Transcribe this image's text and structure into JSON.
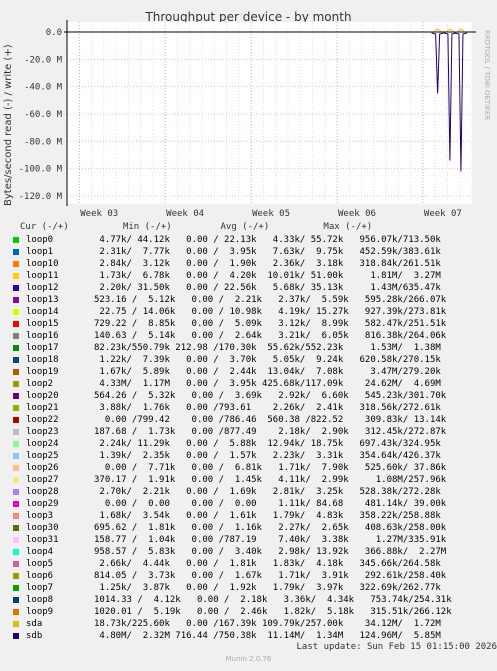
{
  "chart_data": {
    "type": "line",
    "title": "Throughput per device - by month",
    "ylabel": "Bytes/second read (-) / write (+)",
    "ylim": [
      -125000000,
      5000000
    ],
    "yticks": [
      {
        "v": 0,
        "label": "0.0"
      },
      {
        "v": -20000000,
        "label": "-20.0 M"
      },
      {
        "v": -40000000,
        "label": "-40.0 M"
      },
      {
        "v": -60000000,
        "label": "-60.0 M"
      },
      {
        "v": -80000000,
        "label": "-80.0 M"
      },
      {
        "v": -100000000,
        "label": "-100.0 M"
      },
      {
        "v": -120000000,
        "label": "-120.0 M"
      }
    ],
    "xlim": [
      0,
      33
    ],
    "xticks": [
      {
        "v": 1,
        "label": "Week 03"
      },
      {
        "v": 8,
        "label": "Week 04"
      },
      {
        "v": 15,
        "label": "Week 05"
      },
      {
        "v": 22,
        "label": "Week 06"
      },
      {
        "v": 29,
        "label": "Week 07"
      }
    ],
    "spikes": [
      {
        "x": 30.2,
        "y": -45000000
      },
      {
        "x": 31.2,
        "y": -94000000
      },
      {
        "x": 32.1,
        "y": -102000000
      }
    ],
    "grid": true,
    "legend_placement": "bottom"
  },
  "legend_header": "Cur (-/+)          Min (-/+)         Avg (-/+)          Max (-/+)",
  "series": [
    {
      "name": "loop0",
      "color": "#00cc00",
      "text": " 4.77k/ 44.12k   0.00 / 22.13k   4.33k/ 55.72k   956.07k/713.50k"
    },
    {
      "name": "loop1",
      "color": "#0066b3",
      "text": " 2.31k/  7.77k   0.00 /  3.95k   7.63k/  9.75k   452.59k/383.61k"
    },
    {
      "name": "loop10",
      "color": "#ff8000",
      "text": " 2.84k/  3.12k   0.00 /  1.90k   2.36k/  3.18k   318.84k/261.51k"
    },
    {
      "name": "loop11",
      "color": "#ffcc00",
      "text": " 1.73k/  6.78k   0.00 /  4.20k  10.01k/ 51.00k     1.81M/  3.27M"
    },
    {
      "name": "loop12",
      "color": "#330099",
      "text": " 2.20k/ 31.50k   0.00 / 22.56k   5.68k/ 35.13k     1.43M/635.47k"
    },
    {
      "name": "loop13",
      "color": "#990099",
      "text": "523.16 /  5.12k   0.00 /  2.21k   2.37k/  5.59k   595.28k/266.07k"
    },
    {
      "name": "loop14",
      "color": "#ccff00",
      "text": " 22.75 / 14.06k   0.00 / 10.98k   4.19k/ 15.27k   927.39k/273.81k"
    },
    {
      "name": "loop15",
      "color": "#ff0000",
      "text": "729.22 /  8.85k   0.00 /  5.09k   3.12k/  8.99k   582.47k/251.51k"
    },
    {
      "name": "loop16",
      "color": "#808080",
      "text": "140.63 /  5.14k   0.00 /  2.64k   3.21k/  6.05k   816.38k/264.06k"
    },
    {
      "name": "loop17",
      "color": "#008f00",
      "text": "82.23k/550.79k 212.98 /170.30k  55.62k/552.23k     1.53M/  1.38M"
    },
    {
      "name": "loop18",
      "color": "#00487d",
      "text": " 1.22k/  7.39k   0.00 /  3.70k   5.05k/  9.24k   620.58k/270.15k"
    },
    {
      "name": "loop19",
      "color": "#b35a00",
      "text": " 1.67k/  5.89k   0.00 /  2.44k  13.04k/  7.08k     3.47M/279.20k"
    },
    {
      "name": "loop2",
      "color": "#b38f00",
      "text": " 4.33M/  1.17M   0.00 /  3.95k 425.68k/117.09k    24.62M/  4.69M"
    },
    {
      "name": "loop20",
      "color": "#6b006b",
      "text": "564.26 /  5.32k   0.00 /  3.69k   2.92k/  6.60k   545.23k/301.70k"
    },
    {
      "name": "loop21",
      "color": "#8fb300",
      "text": " 3.88k/  1.76k   0.00 /793.61    2.26k/  2.41k   318.56k/272.61k"
    },
    {
      "name": "loop22",
      "color": "#b30000",
      "text": "  0.00 /799.42    0.00 /786.46  560.38 /822.52    309.83k/ 13.14k"
    },
    {
      "name": "loop23",
      "color": "#bebebe",
      "text": "187.68 /  1.73k   0.00 /877.49    2.18k/  2.90k   312.45k/272.87k"
    },
    {
      "name": "loop24",
      "color": "#80ff80",
      "text": " 2.24k/ 11.29k   0.00 /  5.88k  12.94k/ 18.75k   697.43k/324.95k"
    },
    {
      "name": "loop25",
      "color": "#80c9ff",
      "text": " 1.39k/  2.35k   0.00 /  1.57k   2.23k/  3.31k   354.64k/426.37k"
    },
    {
      "name": "loop26",
      "color": "#ffc080",
      "text": "  0.00 /  7.71k   0.00 /  6.81k   1.71k/  7.90k   525.60k/ 37.86k"
    },
    {
      "name": "loop27",
      "color": "#ffe680",
      "text": "370.17 /  1.91k   0.00 /  1.45k   4.11k/  2.99k     1.08M/257.96k"
    },
    {
      "name": "loop28",
      "color": "#aa80ff",
      "text": " 2.70k/  2.21k   0.00 /  1.69k   2.81k/  3.25k   528.38k/272.28k"
    },
    {
      "name": "loop29",
      "color": "#ee00cc",
      "text": "  0.00 /  0.00    0.00 /  0.00    1.11k/ 84.68    481.14k/ 39.00k"
    },
    {
      "name": "loop3",
      "color": "#ff8080",
      "text": " 1.68k/  3.54k   0.00 /  1.61k   1.79k/  4.83k   358.22k/258.88k"
    },
    {
      "name": "loop30",
      "color": "#666600",
      "text": "695.62 /  1.81k   0.00 /  1.16k   2.27k/  2.65k   408.63k/258.00k"
    },
    {
      "name": "loop31",
      "color": "#ffbfff",
      "text": "158.77 /  1.04k   0.00 /787.19    7.40k/  3.38k     1.27M/335.91k"
    },
    {
      "name": "loop4",
      "color": "#00ffcc",
      "text": "958.57 /  5.83k   0.00 /  3.40k   2.98k/ 13.92k   366.88k/  2.27M"
    },
    {
      "name": "loop5",
      "color": "#cc6699",
      "text": " 2.66k/  4.44k   0.00 /  1.81k   1.83k/  4.18k   345.66k/264.58k"
    },
    {
      "name": "loop6",
      "color": "#999900",
      "text": "814.05 /  3.73k   0.00 /  1.67k   1.71k/  3.91k   292.61k/258.40k"
    },
    {
      "name": "loop7",
      "color": "#00a300",
      "text": " 1.25k/  3.87k   0.00 /  1.92k   1.79k/  3.97k   322.69k/262.77k"
    },
    {
      "name": "loop8",
      "color": "#003d73",
      "text": "1014.33 /  4.12k   0.00 /  2.18k   3.36k/  4.34k   753.74k/254.31k"
    },
    {
      "name": "loop9",
      "color": "#e67300",
      "text": "1020.01 /  5.19k   0.00 /  2.46k   1.82k/  5.18k   315.51k/266.12k"
    },
    {
      "name": "sda",
      "color": "#e6b800",
      "text": "18.73k/225.60k   0.00 /167.39k 109.79k/257.00k    34.12M/  1.72M"
    },
    {
      "name": "sdb",
      "color": "#24006b",
      "text": " 4.80M/  2.32M 716.44 /750.38k  11.14M/  1.34M   124.96M/  5.85M"
    }
  ],
  "footer": "Last update: Sun Feb 15 01:15:00 2026",
  "watermark": "Munin 2.0.76",
  "sidebar_text": "RRDTOOL / TOBI OETIKER"
}
